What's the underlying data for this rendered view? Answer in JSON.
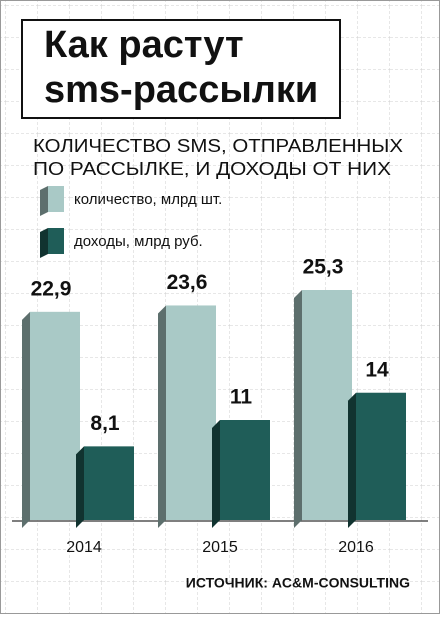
{
  "chart_data": {
    "type": "bar",
    "title": [
      "Как растут",
      "sms-рассылки"
    ],
    "subtitle": [
      "КОЛИЧЕСТВО SMS, ОТПРАВЛЕННЫХ",
      "ПО РАССЫЛКЕ, И ДОХОДЫ ОТ НИХ"
    ],
    "categories": [
      "2014",
      "2015",
      "2016"
    ],
    "series": [
      {
        "name": "количество, млрд шт.",
        "color": "#a9c9c6",
        "values": [
          22.9,
          23.6,
          25.3
        ],
        "value_labels": [
          "22,9",
          "23,6",
          "25,3"
        ]
      },
      {
        "name": "доходы, млрд руб.",
        "color": "#1f5d58",
        "values": [
          8.1,
          11,
          14
        ],
        "value_labels": [
          "8,1",
          "11",
          "14"
        ]
      }
    ],
    "source": "ИСТОЧНИК: AC&M-CONSULTING"
  }
}
